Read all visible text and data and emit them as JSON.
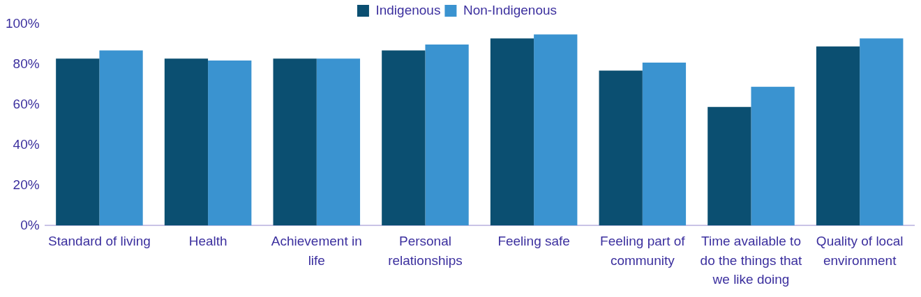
{
  "chart_data": {
    "type": "bar",
    "categories": [
      "Standard of living",
      "Health",
      "Achievement in life",
      "Personal relationships",
      "Feeling safe",
      "Feeling part of community",
      "Time available to do the things that we like doing",
      "Quality of local environment"
    ],
    "series": [
      {
        "name": "Indigenous",
        "color": "#0b4f71",
        "values": [
          83,
          83,
          83,
          87,
          93,
          77,
          59,
          89
        ]
      },
      {
        "name": "Non-Indigenous",
        "color": "#3a93d0",
        "values": [
          87,
          82,
          83,
          90,
          95,
          81,
          69,
          93
        ]
      }
    ],
    "ylim": [
      0,
      100
    ],
    "yticks": [
      {
        "value": 0,
        "label": "0%"
      },
      {
        "value": 20,
        "label": "20%"
      },
      {
        "value": 40,
        "label": "40%"
      },
      {
        "value": 60,
        "label": "60%"
      },
      {
        "value": 80,
        "label": "80%"
      },
      {
        "value": 100,
        "label": "100%"
      }
    ],
    "grid": false,
    "legend": "top"
  }
}
